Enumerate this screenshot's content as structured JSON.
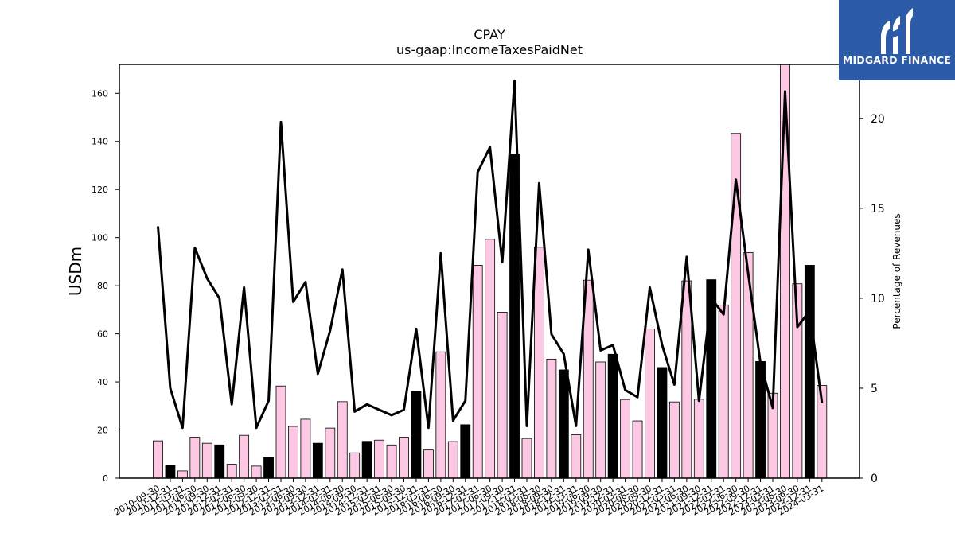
{
  "chart_data": {
    "type": "bar",
    "title": "CPAY",
    "subtitle": "us-gaap:IncomeTaxesPaidNet",
    "ylabel": "USDm",
    "y2label": "Percentage of Revenues",
    "ylim": [
      0,
      172
    ],
    "y2lim": [
      0,
      23
    ],
    "yticks": [
      0,
      20,
      40,
      60,
      80,
      100,
      120,
      140,
      160
    ],
    "y2ticks": [
      0,
      5,
      10,
      15,
      20
    ],
    "categories": [
      "2010-09-30",
      "2010-12-31",
      "2011-03-31",
      "2011-06-30",
      "2011-09-30",
      "2011-12-31",
      "2012-03-31",
      "2012-06-30",
      "2012-09-30",
      "2012-12-31",
      "2013-03-31",
      "2013-06-30",
      "2013-09-30",
      "2013-12-31",
      "2014-03-31",
      "2014-06-30",
      "2014-09-30",
      "2014-12-31",
      "2015-03-31",
      "2015-06-30",
      "2015-09-30",
      "2015-12-31",
      "2016-03-31",
      "2016-06-30",
      "2016-09-30",
      "2016-12-31",
      "2017-03-31",
      "2017-06-30",
      "2017-09-30",
      "2017-12-31",
      "2018-03-31",
      "2018-06-30",
      "2018-09-30",
      "2018-12-31",
      "2019-03-31",
      "2019-06-30",
      "2019-09-30",
      "2019-12-31",
      "2020-03-31",
      "2020-06-30",
      "2020-09-30",
      "2020-12-31",
      "2021-03-31",
      "2021-06-30",
      "2021-09-30",
      "2021-12-31",
      "2022-03-31",
      "2022-06-30",
      "2022-09-30",
      "2022-12-31",
      "2023-03-31",
      "2023-06-30",
      "2023-09-30",
      "2023-12-31",
      "2024-03-31"
    ],
    "series": [
      {
        "kind": "bar",
        "axis": "left",
        "values": [
          15.5,
          5.3,
          3.0,
          17.0,
          14.5,
          13.8,
          5.8,
          17.8,
          5.0,
          8.8,
          38.3,
          21.5,
          24.5,
          14.5,
          20.8,
          31.8,
          10.5,
          15.3,
          15.8,
          13.8,
          17.0,
          36.0,
          11.7,
          52.5,
          15.2,
          22.2,
          88.5,
          99.3,
          69.0,
          134.8,
          16.5,
          96.0,
          49.5,
          45.0,
          18.0,
          82.3,
          48.3,
          51.5,
          32.7,
          23.8,
          62.0,
          46.0,
          31.7,
          82.0,
          32.8,
          82.5,
          72.0,
          143.3,
          93.8,
          48.5,
          35.3,
          172.0,
          80.8,
          88.5,
          38.5
        ],
        "fill": [
          "pink",
          "black",
          "pink",
          "pink",
          "pink",
          "black",
          "pink",
          "pink",
          "pink",
          "black",
          "pink",
          "pink",
          "pink",
          "black",
          "pink",
          "pink",
          "pink",
          "black",
          "pink",
          "pink",
          "pink",
          "black",
          "pink",
          "pink",
          "pink",
          "black",
          "pink",
          "pink",
          "pink",
          "black",
          "pink",
          "pink",
          "pink",
          "black",
          "pink",
          "pink",
          "pink",
          "black",
          "pink",
          "pink",
          "pink",
          "black",
          "pink",
          "pink",
          "pink",
          "black",
          "pink",
          "pink",
          "pink",
          "black",
          "pink",
          "pink",
          "pink",
          "black",
          "pink"
        ]
      },
      {
        "kind": "line",
        "axis": "right",
        "values": [
          14.0,
          5.0,
          2.8,
          12.8,
          11.1,
          10.0,
          4.1,
          10.6,
          2.8,
          4.3,
          19.8,
          9.8,
          10.9,
          5.8,
          8.2,
          11.6,
          3.7,
          4.1,
          3.8,
          3.5,
          3.8,
          8.3,
          2.8,
          12.5,
          3.2,
          4.3,
          17.0,
          18.4,
          12.0,
          22.1,
          2.9,
          16.4,
          8.0,
          6.9,
          2.9,
          12.7,
          7.1,
          7.4,
          4.9,
          4.5,
          10.6,
          7.4,
          5.2,
          12.3,
          4.3,
          10.0,
          9.1,
          16.6,
          11.4,
          6.4,
          3.9,
          21.5,
          8.4,
          9.3,
          4.2
        ]
      }
    ],
    "colors": {
      "pink": "#fcc8e4",
      "black": "#000000",
      "line": "#000000",
      "edge": "#000000"
    }
  },
  "logo": {
    "text": "MIDGARD FINANCE"
  }
}
